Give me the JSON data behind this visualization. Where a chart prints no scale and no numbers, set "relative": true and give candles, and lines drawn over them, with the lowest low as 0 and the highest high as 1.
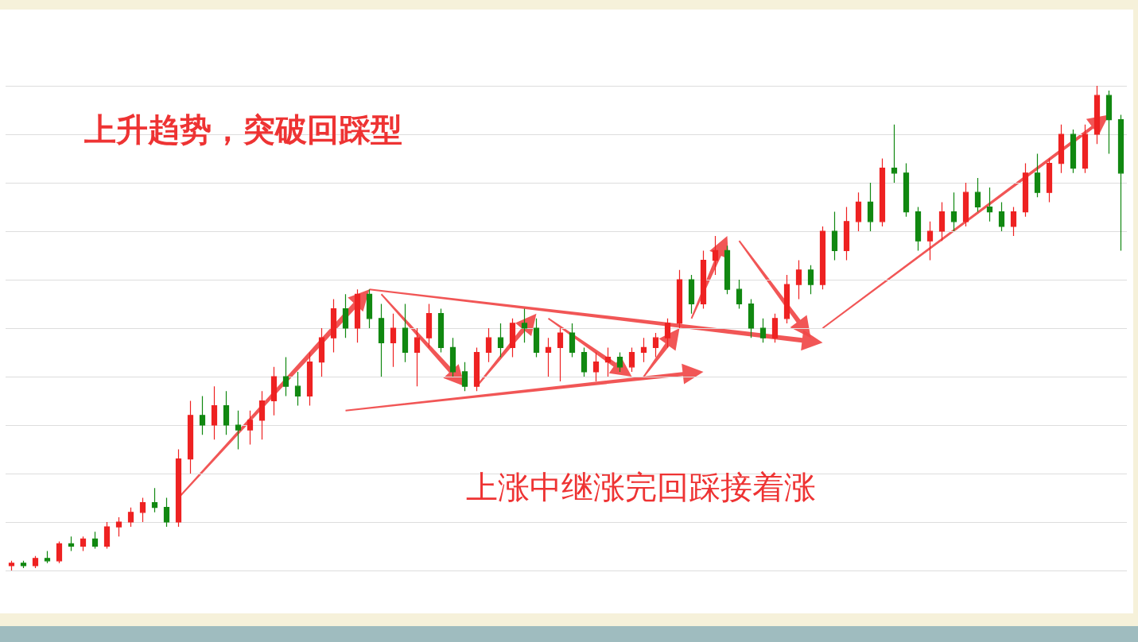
{
  "chart_data": {
    "type": "candlestick",
    "title": "上升趋势，突破回踩型",
    "annotations": [
      "上涨中继涨完回踩接着涨"
    ],
    "relative": true,
    "grid": "y",
    "colors": [
      "#ee2222",
      "#118811",
      "#ee2222",
      "#118811",
      "#ee2222",
      "#118811",
      "#ee2222",
      "#118811",
      "#ee2222",
      "#ee2222",
      "#ee2222",
      "#ee2222",
      "#118811",
      "#118811",
      "#ee2222",
      "#ee2222",
      "#118811",
      "#ee2222",
      "#118811",
      "#118811",
      "#ee2222",
      "#ee2222",
      "#ee2222",
      "#118811",
      "#118811",
      "#ee2222",
      "#ee2222",
      "#ee2222",
      "#118811",
      "#ee2222",
      "#118811",
      "#118811",
      "#ee2222",
      "#118811",
      "#ee2222",
      "#ee2222",
      "#118811",
      "#118811",
      "#118811",
      "#ee2222",
      "#ee2222",
      "#118811",
      "#ee2222",
      "#118811",
      "#118811",
      "#ee2222",
      "#ee2222",
      "#118811",
      "#118811",
      "#ee2222",
      "#ee2222",
      "#118811",
      "#ee2222",
      "#ee2222",
      "#ee2222",
      "#ee2222",
      "#ee2222",
      "#118811",
      "#ee2222",
      "#ee2222",
      "#118811",
      "#118811",
      "#118811",
      "#118811",
      "#ee2222",
      "#ee2222",
      "#ee2222",
      "#118811",
      "#ee2222",
      "#118811",
      "#ee2222",
      "#ee2222",
      "#118811",
      "#ee2222",
      "#118811",
      "#118811",
      "#118811",
      "#ee2222",
      "#ee2222",
      "#118811",
      "#ee2222",
      "#118811",
      "#118811",
      "#118811",
      "#ee2222",
      "#ee2222",
      "#118811",
      "#ee2222",
      "#ee2222",
      "#118811",
      "#ee2222",
      "#ee2222",
      "#118811",
      "#118811"
    ],
    "categories": [
      null,
      null,
      null,
      null,
      null,
      null,
      null,
      null,
      null,
      null,
      null,
      null,
      null,
      null,
      null,
      null,
      null,
      null,
      null,
      null,
      null,
      null,
      null,
      null,
      null,
      null,
      null,
      null,
      null,
      null,
      null,
      null,
      null,
      null,
      null,
      null,
      null,
      null,
      null,
      null,
      null,
      null,
      null,
      null,
      null,
      null,
      null,
      null,
      null,
      null,
      null,
      null,
      null,
      null,
      null,
      null,
      null,
      null,
      null,
      null,
      null,
      null,
      null,
      null,
      null,
      null,
      null,
      null,
      null,
      null,
      null,
      null,
      null,
      null,
      null,
      null,
      null,
      null,
      null,
      null,
      null,
      null,
      null,
      null,
      null,
      null,
      null,
      null,
      null,
      null,
      null,
      null,
      null,
      null
    ],
    "ohlc": [
      [
        0.01,
        0.02,
        0.0,
        0.015
      ],
      [
        0.015,
        0.02,
        0.005,
        0.01
      ],
      [
        0.01,
        0.03,
        0.005,
        0.025
      ],
      [
        0.025,
        0.04,
        0.015,
        0.02
      ],
      [
        0.02,
        0.06,
        0.015,
        0.055
      ],
      [
        0.055,
        0.07,
        0.04,
        0.05
      ],
      [
        0.05,
        0.07,
        0.04,
        0.065
      ],
      [
        0.065,
        0.08,
        0.045,
        0.05
      ],
      [
        0.05,
        0.1,
        0.045,
        0.09
      ],
      [
        0.09,
        0.11,
        0.07,
        0.1
      ],
      [
        0.1,
        0.13,
        0.09,
        0.12
      ],
      [
        0.12,
        0.15,
        0.1,
        0.14
      ],
      [
        0.14,
        0.17,
        0.12,
        0.13
      ],
      [
        0.13,
        0.15,
        0.09,
        0.1
      ],
      [
        0.1,
        0.25,
        0.09,
        0.23
      ],
      [
        0.23,
        0.35,
        0.2,
        0.32
      ],
      [
        0.32,
        0.36,
        0.28,
        0.3
      ],
      [
        0.3,
        0.38,
        0.27,
        0.34
      ],
      [
        0.34,
        0.37,
        0.28,
        0.3
      ],
      [
        0.3,
        0.33,
        0.25,
        0.29
      ],
      [
        0.29,
        0.33,
        0.26,
        0.31
      ],
      [
        0.31,
        0.37,
        0.27,
        0.35
      ],
      [
        0.35,
        0.42,
        0.32,
        0.4
      ],
      [
        0.4,
        0.44,
        0.36,
        0.38
      ],
      [
        0.38,
        0.41,
        0.34,
        0.36
      ],
      [
        0.36,
        0.45,
        0.34,
        0.43
      ],
      [
        0.43,
        0.5,
        0.4,
        0.48
      ],
      [
        0.48,
        0.56,
        0.45,
        0.54
      ],
      [
        0.54,
        0.57,
        0.48,
        0.5
      ],
      [
        0.5,
        0.58,
        0.47,
        0.57
      ],
      [
        0.57,
        0.58,
        0.5,
        0.52
      ],
      [
        0.52,
        0.55,
        0.4,
        0.47
      ],
      [
        0.47,
        0.53,
        0.42,
        0.5
      ],
      [
        0.5,
        0.55,
        0.43,
        0.45
      ],
      [
        0.45,
        0.5,
        0.38,
        0.48
      ],
      [
        0.48,
        0.55,
        0.46,
        0.53
      ],
      [
        0.53,
        0.54,
        0.45,
        0.46
      ],
      [
        0.46,
        0.48,
        0.4,
        0.41
      ],
      [
        0.41,
        0.43,
        0.37,
        0.38
      ],
      [
        0.38,
        0.46,
        0.37,
        0.45
      ],
      [
        0.45,
        0.5,
        0.43,
        0.48
      ],
      [
        0.48,
        0.51,
        0.44,
        0.46
      ],
      [
        0.46,
        0.52,
        0.44,
        0.51
      ],
      [
        0.51,
        0.54,
        0.47,
        0.5
      ],
      [
        0.5,
        0.52,
        0.44,
        0.45
      ],
      [
        0.45,
        0.48,
        0.4,
        0.46
      ],
      [
        0.46,
        0.5,
        0.39,
        0.49
      ],
      [
        0.49,
        0.51,
        0.44,
        0.45
      ],
      [
        0.45,
        0.46,
        0.4,
        0.41
      ],
      [
        0.41,
        0.45,
        0.39,
        0.43
      ],
      [
        0.43,
        0.46,
        0.4,
        0.44
      ],
      [
        0.44,
        0.45,
        0.41,
        0.42
      ],
      [
        0.42,
        0.46,
        0.41,
        0.45
      ],
      [
        0.45,
        0.48,
        0.43,
        0.46
      ],
      [
        0.46,
        0.49,
        0.44,
        0.48
      ],
      [
        0.48,
        0.52,
        0.46,
        0.51
      ],
      [
        0.51,
        0.62,
        0.5,
        0.6
      ],
      [
        0.6,
        0.61,
        0.53,
        0.55
      ],
      [
        0.55,
        0.66,
        0.54,
        0.64
      ],
      [
        0.64,
        0.69,
        0.61,
        0.66
      ],
      [
        0.66,
        0.67,
        0.57,
        0.58
      ],
      [
        0.58,
        0.6,
        0.54,
        0.55
      ],
      [
        0.55,
        0.56,
        0.48,
        0.5
      ],
      [
        0.5,
        0.52,
        0.47,
        0.48
      ],
      [
        0.48,
        0.53,
        0.47,
        0.52
      ],
      [
        0.52,
        0.61,
        0.51,
        0.59
      ],
      [
        0.59,
        0.64,
        0.56,
        0.62
      ],
      [
        0.62,
        0.63,
        0.57,
        0.59
      ],
      [
        0.59,
        0.71,
        0.58,
        0.7
      ],
      [
        0.7,
        0.74,
        0.64,
        0.66
      ],
      [
        0.66,
        0.75,
        0.64,
        0.72
      ],
      [
        0.72,
        0.78,
        0.7,
        0.76
      ],
      [
        0.76,
        0.8,
        0.7,
        0.72
      ],
      [
        0.72,
        0.85,
        0.71,
        0.83
      ],
      [
        0.83,
        0.92,
        0.8,
        0.82
      ],
      [
        0.82,
        0.84,
        0.73,
        0.74
      ],
      [
        0.74,
        0.75,
        0.66,
        0.68
      ],
      [
        0.68,
        0.72,
        0.64,
        0.7
      ],
      [
        0.7,
        0.76,
        0.68,
        0.74
      ],
      [
        0.74,
        0.78,
        0.7,
        0.72
      ],
      [
        0.72,
        0.8,
        0.71,
        0.78
      ],
      [
        0.78,
        0.81,
        0.74,
        0.75
      ],
      [
        0.75,
        0.79,
        0.72,
        0.74
      ],
      [
        0.74,
        0.76,
        0.7,
        0.71
      ],
      [
        0.71,
        0.75,
        0.69,
        0.74
      ],
      [
        0.74,
        0.84,
        0.73,
        0.82
      ],
      [
        0.82,
        0.86,
        0.77,
        0.78
      ],
      [
        0.78,
        0.85,
        0.76,
        0.84
      ],
      [
        0.84,
        0.92,
        0.82,
        0.9
      ],
      [
        0.9,
        0.91,
        0.82,
        0.83
      ],
      [
        0.83,
        0.92,
        0.82,
        0.9
      ],
      [
        0.9,
        1.0,
        0.88,
        0.98
      ],
      [
        0.98,
        0.99,
        0.86,
        0.93
      ],
      [
        0.93,
        0.94,
        0.66,
        0.82
      ]
    ]
  }
}
